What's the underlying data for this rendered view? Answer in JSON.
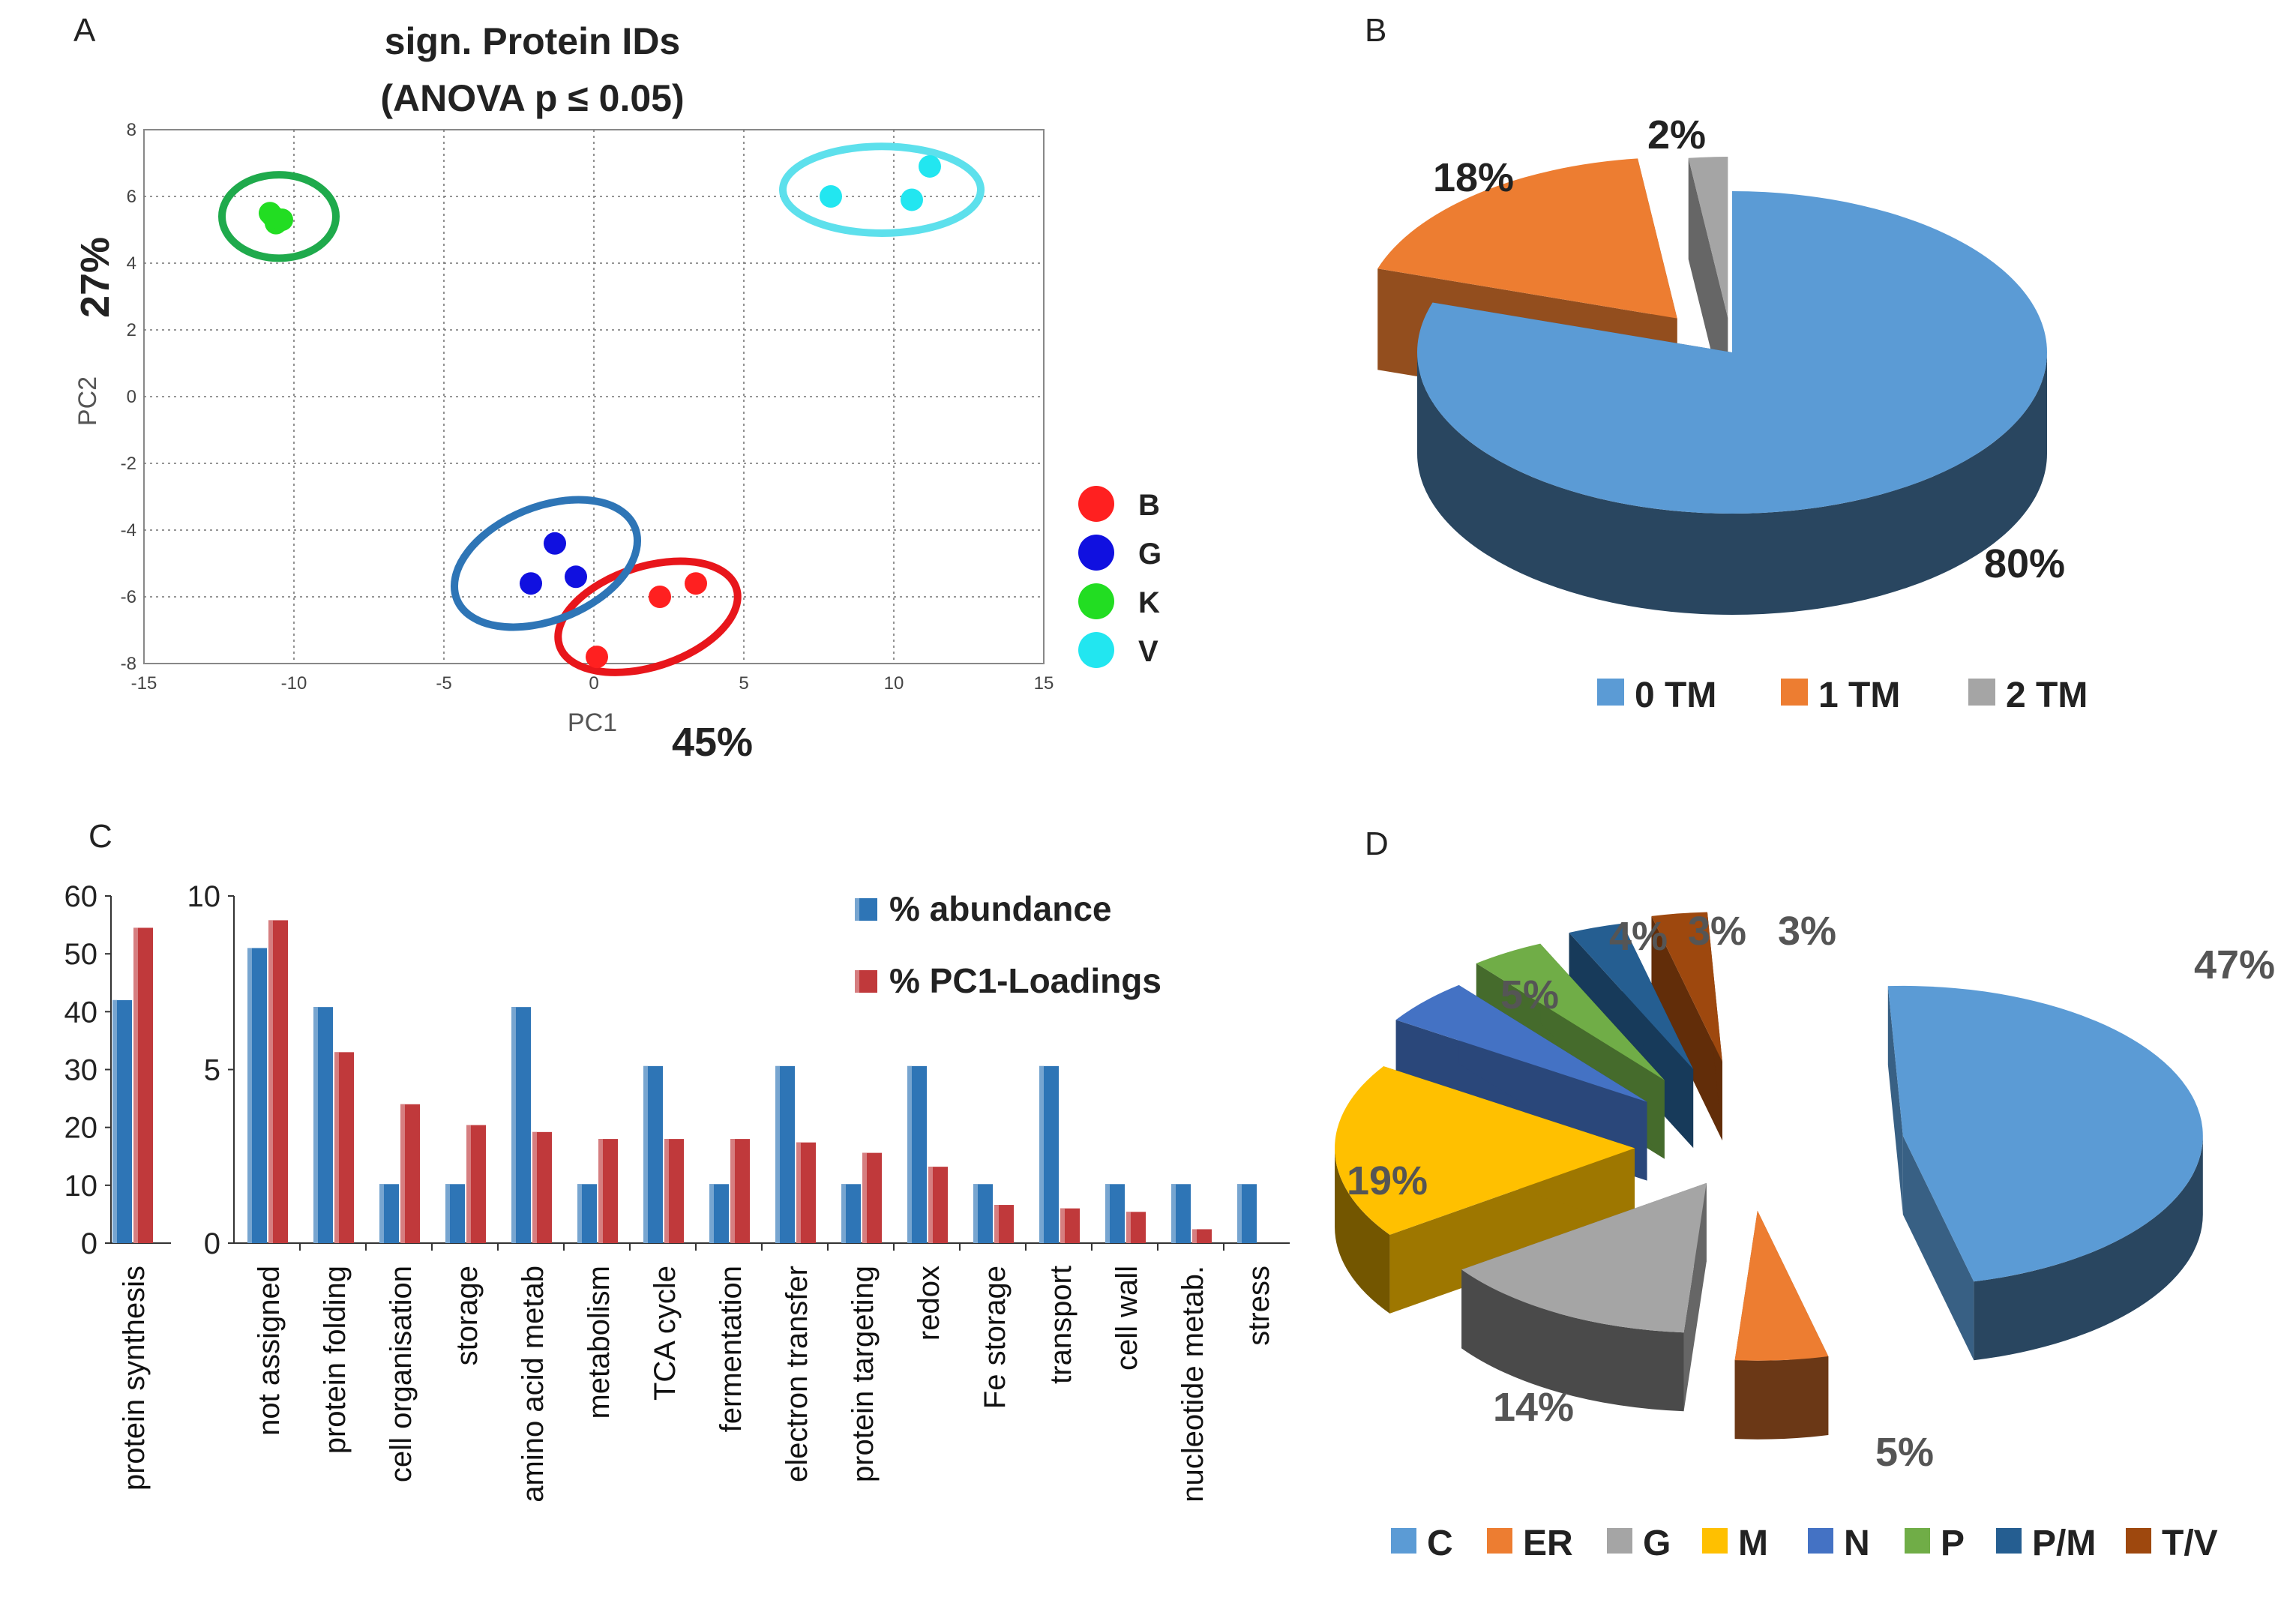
{
  "chart_data": [
    {
      "panel": "A",
      "type": "scatter",
      "title": "sign. Protein IDs",
      "subtitle": "(ANOVA p ≤ 0.05)",
      "xlabel": "PC1",
      "ylabel": "PC2",
      "x_variance": "45%",
      "y_variance": "27%",
      "xlim": [
        -15,
        15
      ],
      "ylim": [
        -8,
        8
      ],
      "xticks": [
        -15,
        -10,
        -5,
        0,
        5,
        10,
        15
      ],
      "yticks": [
        -8,
        -6,
        -4,
        -2,
        0,
        2,
        4,
        6,
        8
      ],
      "grid": true,
      "series": [
        {
          "name": "B",
          "color": "#ff2020",
          "ellipse_color": "#e8161b",
          "points": [
            [
              0.1,
              -7.8
            ],
            [
              2.2,
              -6.0
            ],
            [
              3.4,
              -5.6
            ]
          ]
        },
        {
          "name": "G",
          "color": "#1010e0",
          "ellipse_color": "#2e75b6",
          "points": [
            [
              -2.1,
              -5.6
            ],
            [
              -1.3,
              -4.4
            ],
            [
              -0.6,
              -5.4
            ]
          ]
        },
        {
          "name": "K",
          "color": "#22dd22",
          "ellipse_color": "#1faa4c",
          "points": [
            [
              -10.8,
              5.5
            ],
            [
              -10.6,
              5.2
            ],
            [
              -10.4,
              5.3
            ],
            [
              -10.7,
              5.4
            ]
          ]
        },
        {
          "name": "V",
          "color": "#22e6f0",
          "ellipse_color": "#5de0ec",
          "points": [
            [
              7.9,
              6.0
            ],
            [
              10.6,
              5.9
            ],
            [
              11.2,
              6.9
            ]
          ]
        }
      ]
    },
    {
      "panel": "B",
      "type": "pie",
      "labels": [
        "0 TM",
        "1 TM",
        "2 TM"
      ],
      "values": [
        80,
        18,
        2
      ],
      "value_labels": [
        "80%",
        "18%",
        "2%"
      ],
      "colors": [
        "#5b9bd5",
        "#ed7d31",
        "#a5a5a5"
      ],
      "legend": "bottom"
    },
    {
      "panel": "C",
      "type": "bar",
      "series": [
        {
          "name": "% abundance",
          "color": "#2e75b6"
        },
        {
          "name": "% PC1-Loadings",
          "color": "#c0393b"
        }
      ],
      "left": {
        "categories": [
          "protein synthesis"
        ],
        "ylim": [
          0,
          60
        ],
        "yticks": [
          0,
          10,
          20,
          30,
          40,
          50,
          60
        ],
        "values": {
          "abundance": [
            42
          ],
          "pc1": [
            54.5
          ]
        }
      },
      "right": {
        "categories": [
          "not assigned",
          "protein folding",
          "cell organisation",
          "storage",
          "amino acid metab",
          "metabolism",
          "TCA cycle",
          "fermentation",
          "electron transfer",
          "protein targeting",
          "redox",
          "Fe storage",
          "transport",
          "cell wall",
          "nucleotide metab.",
          "stress"
        ],
        "ylim": [
          0,
          10
        ],
        "yticks": [
          0,
          5,
          10
        ],
        "values": {
          "abundance": [
            8.5,
            6.8,
            1.7,
            1.7,
            6.8,
            1.7,
            5.1,
            1.7,
            5.1,
            1.7,
            5.1,
            1.7,
            5.1,
            1.7,
            1.7,
            1.7
          ],
          "pc1": [
            9.3,
            5.5,
            4.0,
            3.4,
            3.2,
            3.0,
            3.0,
            3.0,
            2.9,
            2.6,
            2.2,
            1.1,
            1.0,
            0.9,
            0.4,
            0.0
          ]
        }
      },
      "legend": "top-right"
    },
    {
      "panel": "D",
      "type": "pie",
      "labels": [
        "C",
        "ER",
        "G",
        "M",
        "N",
        "P",
        "P/M",
        "T/V"
      ],
      "values": [
        47,
        5,
        14,
        19,
        5,
        4,
        3,
        3
      ],
      "value_labels": [
        "47%",
        "5%",
        "14%",
        "19%",
        "5%",
        "4%",
        "3%",
        "3%"
      ],
      "colors": [
        "#5b9bd5",
        "#ed7d31",
        "#a5a5a5",
        "#ffc000",
        "#4472c4",
        "#70ad47",
        "#255e91",
        "#9e480e"
      ],
      "legend": "bottom"
    }
  ],
  "panels": {
    "a": "A",
    "b": "B",
    "c": "C",
    "d": "D"
  }
}
